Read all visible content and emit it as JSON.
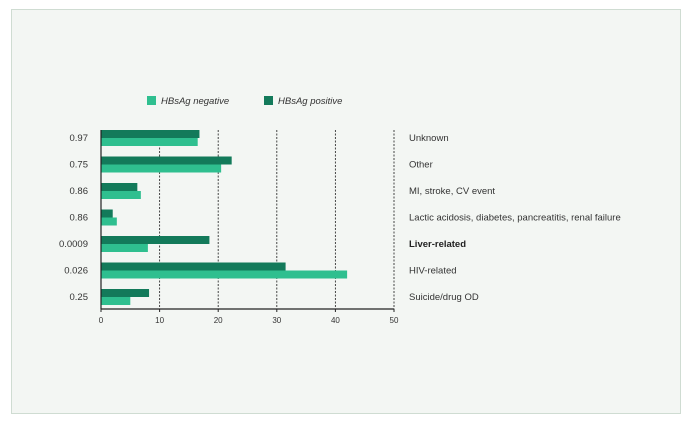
{
  "chart_data": {
    "type": "bar",
    "orientation": "horizontal",
    "categories": [
      "Unknown",
      "Other",
      "MI, stroke, CV event",
      "Lactic acidosis, diabetes, pancreatitis, renal failure",
      "Liver-related",
      "HIV-related",
      "Suicide/drug OD"
    ],
    "emphasized_categories": [
      "Liver-related"
    ],
    "p_values": [
      "0.97",
      "0.75",
      "0.86",
      "0.86",
      "0.0009",
      "0.026",
      "0.25"
    ],
    "series": [
      {
        "name": "HBsAg negative",
        "color": "#2fbf8f",
        "values": [
          16.5,
          20.5,
          6.8,
          2.7,
          8.0,
          42.0,
          5.0
        ]
      },
      {
        "name": "HBsAg positive",
        "color": "#137a5a",
        "values": [
          16.8,
          22.3,
          6.2,
          2.0,
          18.5,
          31.5,
          8.2
        ]
      }
    ],
    "xlim": [
      0,
      50
    ],
    "xticks": [
      "0",
      "10",
      "20",
      "30",
      "40",
      "50"
    ],
    "grid": "vertical dashed",
    "legend_position": "top-left"
  }
}
